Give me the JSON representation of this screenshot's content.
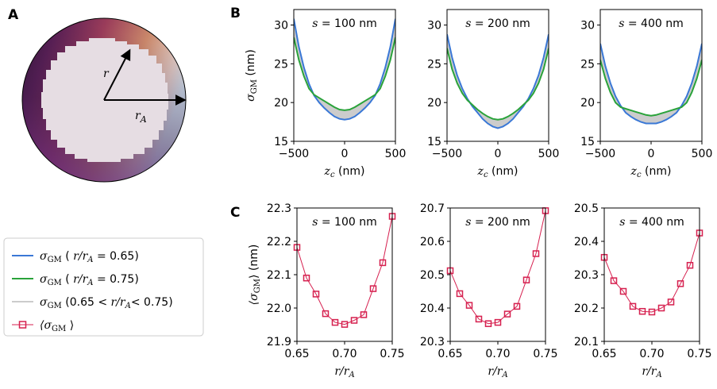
{
  "panel_letters": [
    "A",
    "B",
    "C"
  ],
  "schematic": {
    "r_label": "r",
    "rA_label_main": "r",
    "rA_label_sub": "A"
  },
  "legend": {
    "entries": [
      {
        "kind": "line",
        "color": "#3a78d6",
        "sym": "σ",
        "sub": "GM",
        "rest_pre": "(",
        "var": "r/r",
        "var_sub": "A",
        "rest_post": " = 0.65)"
      },
      {
        "kind": "line",
        "color": "#2aa33a",
        "sym": "σ",
        "sub": "GM",
        "rest_pre": "(",
        "var": "r/r",
        "var_sub": "A",
        "rest_post": " = 0.75)"
      },
      {
        "kind": "line",
        "color": "#cccccc",
        "sym": "σ",
        "sub": "GM",
        "rest_pre": "(0.65 <",
        "var": "r/r",
        "var_sub": "A",
        "rest_post": "< 0.75)"
      },
      {
        "kind": "marker",
        "color": "#d6204f",
        "sym": "⟨σ",
        "sub": "GM",
        "rest_pre": "⟩",
        "var": "",
        "var_sub": "",
        "rest_post": ""
      }
    ]
  },
  "chart_data": [
    {
      "id": "B1",
      "type": "area",
      "title_var": "s",
      "title_rest": " = 100 nm",
      "xlabel_var": "z",
      "xlabel_sub": "c",
      "xlabel_rest": " (nm)",
      "ylabel_sym": "σ",
      "ylabel_sub": "GM",
      "ylabel_rest": " (nm)",
      "xlim": [
        -500,
        500
      ],
      "ylim": [
        15,
        32
      ],
      "xticks": [
        -500,
        0,
        500
      ],
      "xtick_labels": [
        "−500",
        "0",
        "500"
      ],
      "yticks": [
        15,
        20,
        25,
        30
      ],
      "ytick_labels": [
        "15",
        "20",
        "25",
        "30"
      ],
      "series": [
        {
          "color": "#3a78d6",
          "x": [
            -500,
            -450,
            -400,
            -350,
            -300,
            -250,
            -200,
            -150,
            -100,
            -50,
            0,
            50,
            100,
            150,
            200,
            250,
            300,
            350,
            400,
            450,
            500
          ],
          "y": [
            30.8,
            27.2,
            24.5,
            22.4,
            20.9,
            20.0,
            19.3,
            18.7,
            18.2,
            17.9,
            17.8,
            17.9,
            18.2,
            18.7,
            19.3,
            20.0,
            20.9,
            22.4,
            24.5,
            27.2,
            30.8
          ]
        },
        {
          "color": "#2aa33a",
          "x": [
            -500,
            -450,
            -400,
            -350,
            -300,
            -250,
            -200,
            -150,
            -100,
            -50,
            0,
            50,
            100,
            150,
            200,
            250,
            300,
            350,
            400,
            450,
            500
          ],
          "y": [
            28.4,
            25.5,
            23.4,
            21.8,
            21.0,
            20.6,
            20.2,
            19.8,
            19.4,
            19.1,
            19.0,
            19.1,
            19.4,
            19.8,
            20.2,
            20.6,
            21.0,
            21.8,
            23.4,
            25.5,
            28.4
          ]
        }
      ]
    },
    {
      "id": "B2",
      "type": "area",
      "title_var": "s",
      "title_rest": " = 200 nm",
      "xlabel_var": "z",
      "xlabel_sub": "c",
      "xlabel_rest": " (nm)",
      "xlim": [
        -500,
        500
      ],
      "ylim": [
        15,
        32
      ],
      "xticks": [
        -500,
        0,
        500
      ],
      "xtick_labels": [
        "−500",
        "0",
        "500"
      ],
      "yticks": [
        15,
        20,
        25,
        30
      ],
      "ytick_labels": [
        "15",
        "20",
        "25",
        "30"
      ],
      "series": [
        {
          "color": "#3a78d6",
          "x": [
            -500,
            -450,
            -400,
            -350,
            -300,
            -250,
            -200,
            -150,
            -100,
            -50,
            0,
            50,
            100,
            150,
            200,
            250,
            300,
            350,
            400,
            450,
            500
          ],
          "y": [
            28.8,
            25.8,
            23.5,
            21.8,
            20.5,
            19.5,
            18.7,
            17.9,
            17.3,
            16.9,
            16.7,
            16.9,
            17.3,
            17.9,
            18.7,
            19.5,
            20.5,
            21.8,
            23.5,
            25.8,
            28.8
          ]
        },
        {
          "color": "#2aa33a",
          "x": [
            -500,
            -450,
            -400,
            -350,
            -300,
            -250,
            -200,
            -150,
            -100,
            -50,
            0,
            50,
            100,
            150,
            200,
            250,
            300,
            350,
            400,
            450,
            500
          ],
          "y": [
            27.0,
            24.3,
            22.5,
            21.2,
            20.3,
            19.7,
            19.1,
            18.6,
            18.2,
            17.9,
            17.8,
            17.9,
            18.2,
            18.6,
            19.1,
            19.7,
            20.3,
            21.2,
            22.5,
            24.3,
            27.0
          ]
        }
      ]
    },
    {
      "id": "B3",
      "type": "area",
      "title_var": "s",
      "title_rest": " = 400 nm",
      "xlabel_var": "z",
      "xlabel_sub": "c",
      "xlabel_rest": " (nm)",
      "xlim": [
        -500,
        500
      ],
      "ylim": [
        15,
        32
      ],
      "xticks": [
        -500,
        0,
        500
      ],
      "xtick_labels": [
        "−500",
        "0",
        "500"
      ],
      "yticks": [
        15,
        20,
        25,
        30
      ],
      "ytick_labels": [
        "15",
        "20",
        "25",
        "30"
      ],
      "series": [
        {
          "color": "#3a78d6",
          "x": [
            -500,
            -450,
            -400,
            -350,
            -300,
            -250,
            -200,
            -150,
            -100,
            -50,
            0,
            50,
            100,
            150,
            200,
            250,
            300,
            350,
            400,
            450,
            500
          ],
          "y": [
            27.6,
            24.7,
            22.5,
            20.8,
            19.6,
            18.7,
            18.2,
            17.8,
            17.5,
            17.3,
            17.3,
            17.3,
            17.5,
            17.8,
            18.2,
            18.7,
            19.6,
            20.8,
            22.5,
            24.7,
            27.6
          ]
        },
        {
          "color": "#2aa33a",
          "x": [
            -500,
            -450,
            -400,
            -350,
            -300,
            -250,
            -200,
            -150,
            -100,
            -50,
            0,
            50,
            100,
            150,
            200,
            250,
            300,
            350,
            400,
            450,
            500
          ],
          "y": [
            25.5,
            23.1,
            21.3,
            20.0,
            19.4,
            19.2,
            19.0,
            18.8,
            18.6,
            18.4,
            18.3,
            18.4,
            18.6,
            18.8,
            19.0,
            19.2,
            19.4,
            20.0,
            21.3,
            23.1,
            25.5
          ]
        }
      ]
    },
    {
      "id": "C1",
      "type": "line",
      "title_var": "s",
      "title_rest": " = 100 nm",
      "xlabel_var": "r/r",
      "xlabel_sub": "A",
      "ylabel_pre": "⟨σ",
      "ylabel_sub": "GM",
      "ylabel_rest": "⟩ (nm)",
      "xlim": [
        0.65,
        0.75
      ],
      "ylim": [
        21.9,
        22.3
      ],
      "xticks": [
        0.65,
        0.7,
        0.75
      ],
      "xtick_labels": [
        "0.65",
        "0.70",
        "0.75"
      ],
      "yticks": [
        21.9,
        22.0,
        22.1,
        22.2,
        22.3
      ],
      "ytick_labels": [
        "21.9",
        "22.0",
        "22.1",
        "22.2",
        "22.3"
      ],
      "series": [
        {
          "color": "#d6204f",
          "x": [
            0.65,
            0.66,
            0.67,
            0.68,
            0.69,
            0.7,
            0.71,
            0.72,
            0.73,
            0.74,
            0.75
          ],
          "y": [
            22.182,
            22.09,
            22.042,
            21.983,
            21.957,
            21.951,
            21.963,
            21.98,
            22.058,
            22.136,
            22.275
          ]
        }
      ]
    },
    {
      "id": "C2",
      "type": "line",
      "title_var": "s",
      "title_rest": " = 200 nm",
      "xlabel_var": "r/r",
      "xlabel_sub": "A",
      "xlim": [
        0.65,
        0.75
      ],
      "ylim": [
        20.3,
        20.7
      ],
      "xticks": [
        0.65,
        0.7,
        0.75
      ],
      "xtick_labels": [
        "0.65",
        "0.70",
        "0.75"
      ],
      "yticks": [
        20.3,
        20.4,
        20.5,
        20.6,
        20.7
      ],
      "ytick_labels": [
        "20.3",
        "20.4",
        "20.5",
        "20.6",
        "20.7"
      ],
      "series": [
        {
          "color": "#d6204f",
          "x": [
            0.65,
            0.66,
            0.67,
            0.68,
            0.69,
            0.7,
            0.71,
            0.72,
            0.73,
            0.74,
            0.75
          ],
          "y": [
            20.512,
            20.443,
            20.408,
            20.367,
            20.353,
            20.357,
            20.382,
            20.405,
            20.484,
            20.563,
            20.692
          ]
        }
      ]
    },
    {
      "id": "C3",
      "type": "line",
      "title_var": "s",
      "title_rest": " = 400 nm",
      "xlabel_var": "r/r",
      "xlabel_sub": "A",
      "xlim": [
        0.65,
        0.75
      ],
      "ylim": [
        20.1,
        20.5
      ],
      "xticks": [
        0.65,
        0.7,
        0.75
      ],
      "xtick_labels": [
        "0.65",
        "0.70",
        "0.75"
      ],
      "yticks": [
        20.1,
        20.2,
        20.3,
        20.4,
        20.5
      ],
      "ytick_labels": [
        "20.1",
        "20.2",
        "20.3",
        "20.4",
        "20.5"
      ],
      "series": [
        {
          "color": "#d6204f",
          "x": [
            0.65,
            0.66,
            0.67,
            0.68,
            0.69,
            0.7,
            0.71,
            0.72,
            0.73,
            0.74,
            0.75
          ],
          "y": [
            20.352,
            20.282,
            20.25,
            20.205,
            20.19,
            20.188,
            20.2,
            20.218,
            20.273,
            20.328,
            20.425
          ]
        }
      ]
    }
  ]
}
